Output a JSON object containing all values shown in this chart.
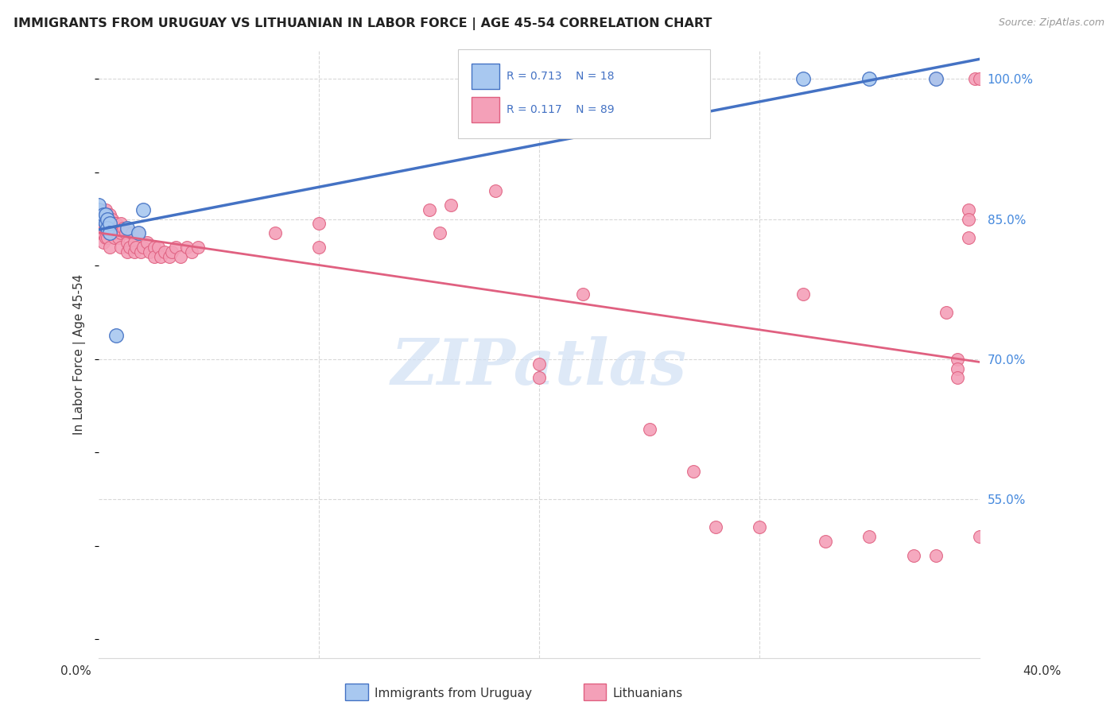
{
  "title": "IMMIGRANTS FROM URUGUAY VS LITHUANIAN IN LABOR FORCE | AGE 45-54 CORRELATION CHART",
  "source": "Source: ZipAtlas.com",
  "ylabel": "In Labor Force | Age 45-54",
  "color_uruguay": "#a8c8f0",
  "color_lithuanian": "#f4a0b8",
  "color_trend_uruguay": "#4472c4",
  "color_trend_lithuanian": "#e06080",
  "color_axis_labels": "#4488dd",
  "xlim": [
    0.0,
    0.4
  ],
  "ylim": [
    0.38,
    1.03
  ],
  "uruguay_x": [
    0.0,
    0.0,
    0.0,
    0.002,
    0.002,
    0.003,
    0.003,
    0.004,
    0.004,
    0.005,
    0.005,
    0.008,
    0.013,
    0.018,
    0.02,
    0.32,
    0.35,
    0.38
  ],
  "uruguay_y": [
    0.855,
    0.86,
    0.865,
    0.85,
    0.855,
    0.845,
    0.855,
    0.85,
    0.84,
    0.845,
    0.835,
    0.725,
    0.84,
    0.835,
    0.86,
    1.0,
    1.0,
    1.0
  ],
  "lithuanian_x": [
    0.0,
    0.0,
    0.0,
    0.0,
    0.0,
    0.001,
    0.001,
    0.001,
    0.002,
    0.002,
    0.002,
    0.002,
    0.003,
    0.003,
    0.003,
    0.003,
    0.004,
    0.004,
    0.004,
    0.005,
    0.005,
    0.005,
    0.005,
    0.006,
    0.006,
    0.007,
    0.007,
    0.008,
    0.008,
    0.009,
    0.01,
    0.01,
    0.01,
    0.011,
    0.012,
    0.013,
    0.013,
    0.014,
    0.015,
    0.016,
    0.016,
    0.017,
    0.018,
    0.019,
    0.02,
    0.022,
    0.023,
    0.025,
    0.025,
    0.027,
    0.028,
    0.03,
    0.032,
    0.033,
    0.035,
    0.037,
    0.04,
    0.042,
    0.045,
    0.08,
    0.1,
    0.1,
    0.15,
    0.155,
    0.16,
    0.18,
    0.2,
    0.2,
    0.22,
    0.25,
    0.27,
    0.28,
    0.3,
    0.32,
    0.33,
    0.35,
    0.37,
    0.38,
    0.38,
    0.385,
    0.39,
    0.39,
    0.39,
    0.395,
    0.395,
    0.395,
    0.398,
    0.4,
    0.4
  ],
  "lithuanian_y": [
    0.855,
    0.85,
    0.845,
    0.84,
    0.835,
    0.86,
    0.85,
    0.84,
    0.855,
    0.845,
    0.835,
    0.825,
    0.86,
    0.85,
    0.84,
    0.83,
    0.855,
    0.845,
    0.83,
    0.855,
    0.845,
    0.835,
    0.82,
    0.85,
    0.84,
    0.845,
    0.83,
    0.845,
    0.835,
    0.83,
    0.845,
    0.835,
    0.82,
    0.84,
    0.835,
    0.825,
    0.815,
    0.82,
    0.835,
    0.825,
    0.815,
    0.82,
    0.835,
    0.815,
    0.82,
    0.825,
    0.815,
    0.82,
    0.81,
    0.82,
    0.81,
    0.815,
    0.81,
    0.815,
    0.82,
    0.81,
    0.82,
    0.815,
    0.82,
    0.835,
    0.845,
    0.82,
    0.86,
    0.835,
    0.865,
    0.88,
    0.695,
    0.68,
    0.77,
    0.625,
    0.58,
    0.52,
    0.52,
    0.77,
    0.505,
    0.51,
    0.49,
    0.49,
    1.0,
    0.75,
    0.7,
    0.69,
    0.68,
    0.86,
    0.85,
    0.83,
    1.0,
    1.0,
    0.51
  ],
  "legend_R_uruguay": "R = 0.713",
  "legend_N_uruguay": "N = 18",
  "legend_R_lithuanian": "R = 0.117",
  "legend_N_lithuanian": "N = 89",
  "legend_label_uruguay": "Immigrants from Uruguay",
  "legend_label_lithuanian": "Lithuanians",
  "grid_color": "#d8d8d8",
  "watermark_text": "ZIPatlas",
  "watermark_color": "#d0e0f4"
}
